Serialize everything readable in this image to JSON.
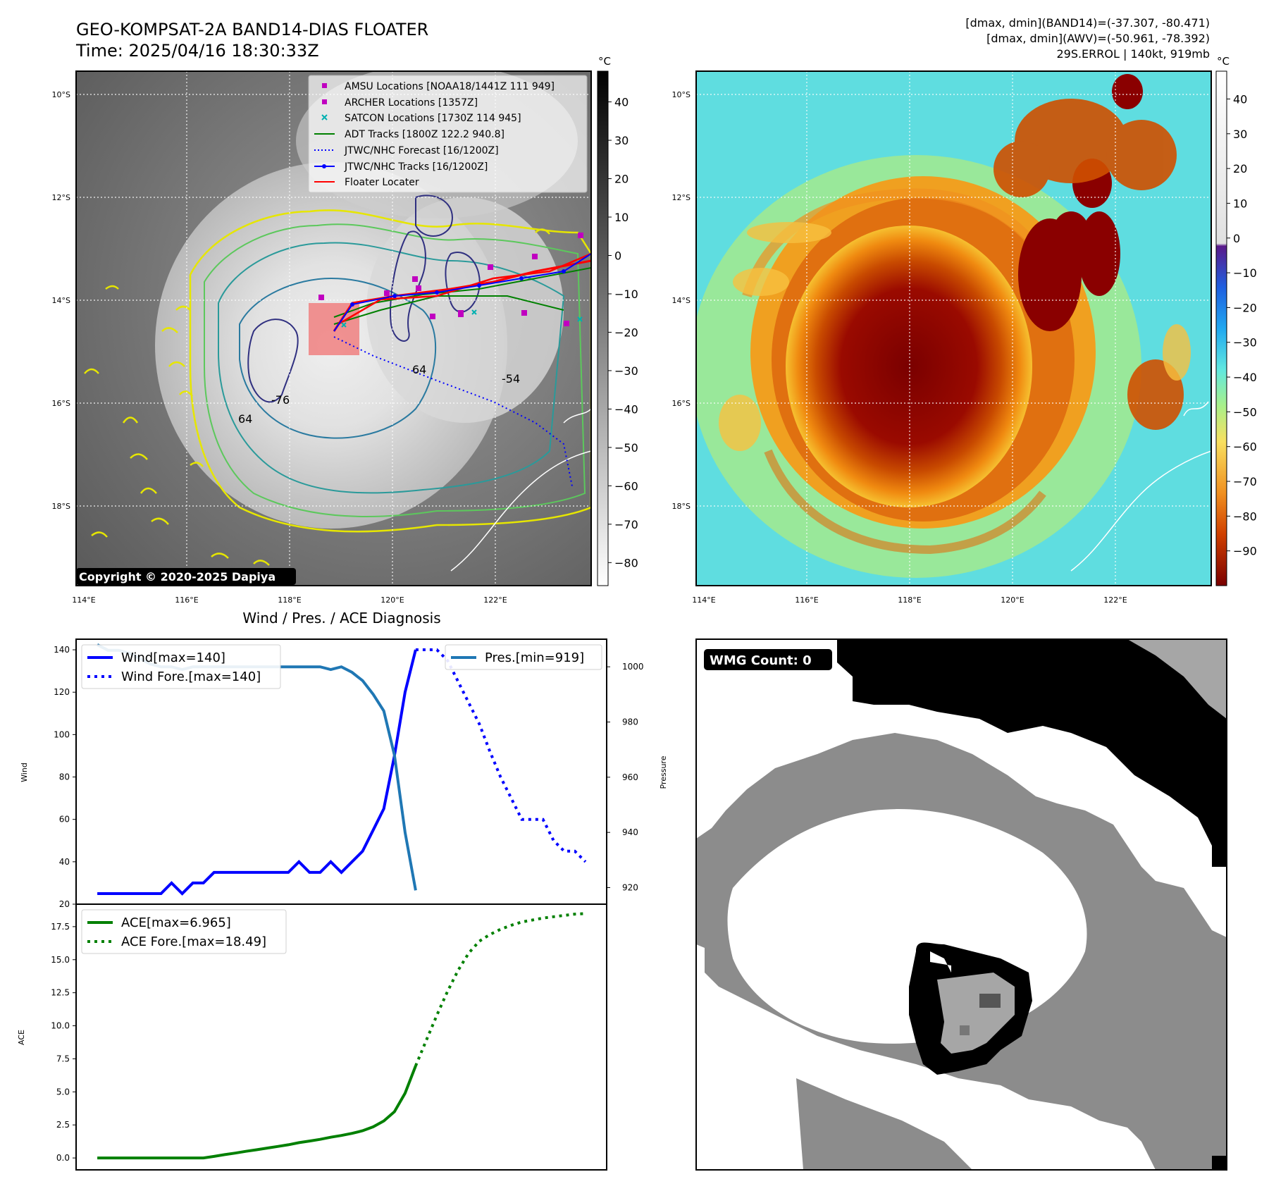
{
  "header": {
    "title_line1": "GEO-KOMPSAT-2A BAND14-DIAS FLOATER",
    "title_line2": "Time: 2025/04/16 18:30:33Z",
    "info_line1": "[dmax, dmin](BAND14)=(-37.307, -80.471)",
    "info_line2": "[dmax, dmin](AWV)=(-50.961, -78.392)",
    "info_line3": "29S.ERROL | 140kt, 919mb"
  },
  "map": {
    "lat_labels": [
      "10°S",
      "12°S",
      "14°S",
      "16°S",
      "18°S"
    ],
    "lon_labels": [
      "114°E",
      "116°E",
      "118°E",
      "120°E",
      "122°E"
    ],
    "copyright": "Copyright © 2020-2025 Dapiya",
    "contour_labels": [
      "-76",
      "64",
      "64",
      "-54"
    ],
    "legend": [
      {
        "label": "AMSU Locations [NOAA18/1441Z 111 949]",
        "marker": "square",
        "color": "#c000c0"
      },
      {
        "label": "ARCHER Locations [1357Z]",
        "marker": "square",
        "color": "#c000c0"
      },
      {
        "label": "SATCON Locations [1730Z 114 945]",
        "marker": "x",
        "color": "#00b0b0"
      },
      {
        "label": "ADT Tracks [1800Z 122.2 940.8]",
        "marker": "line",
        "color": "#008000"
      },
      {
        "label": "JTWC/NHC Forecast [16/1200Z]",
        "marker": "dotted",
        "color": "#0000ff"
      },
      {
        "label": "JTWC/NHC Tracks [16/1200Z]",
        "marker": "line-dot",
        "color": "#0000ff"
      },
      {
        "label": "Floater Locater",
        "marker": "line",
        "color": "#ff0000"
      }
    ]
  },
  "colorbar_gray": {
    "unit": "°C",
    "ticks": [
      "40",
      "30",
      "20",
      "10",
      "0",
      "−10",
      "−20",
      "−30",
      "−40",
      "−50",
      "−60",
      "−70",
      "−80"
    ]
  },
  "colorbar_color": {
    "unit": "°C",
    "ticks": [
      "40",
      "30",
      "20",
      "10",
      "0",
      "−10",
      "−20",
      "−30",
      "−40",
      "−50",
      "−60",
      "−70",
      "−80",
      "−90"
    ]
  },
  "wmg": {
    "label": "WMG Count: 0"
  },
  "chart_data": [
    {
      "type": "line",
      "title": "Wind / Pres. / ACE Diagnosis",
      "ylabel": "Wind",
      "ylim": [
        20,
        145
      ],
      "yticks": [
        20,
        40,
        60,
        80,
        100,
        120,
        140
      ],
      "y2label": "Pressure",
      "y2lim": [
        914,
        1010
      ],
      "y2ticks": [
        920,
        940,
        960,
        980,
        1000
      ],
      "xlim": [
        -2,
        48
      ],
      "series": [
        {
          "name": "Wind[max=140]",
          "axis": "left",
          "style": "solid",
          "color": "#0000ff",
          "x": [
            0,
            1,
            2,
            3,
            4,
            5,
            6,
            7,
            8,
            9,
            10,
            11,
            12,
            13,
            14,
            15,
            16,
            17,
            18,
            19,
            20,
            21,
            22,
            23,
            24,
            25,
            26,
            27,
            28,
            29,
            30
          ],
          "values": [
            25,
            25,
            25,
            25,
            25,
            25,
            25,
            30,
            25,
            30,
            30,
            35,
            35,
            35,
            35,
            35,
            35,
            35,
            35,
            40,
            35,
            35,
            40,
            35,
            40,
            45,
            55,
            65,
            90,
            120,
            140
          ]
        },
        {
          "name": "Wind Fore.[max=140]",
          "axis": "left",
          "style": "dotted",
          "color": "#0000ff",
          "x": [
            30,
            31,
            32,
            33,
            34,
            35,
            36,
            37,
            38,
            39,
            40,
            41,
            42,
            43,
            44,
            45,
            46
          ],
          "values": [
            140,
            140,
            140,
            135,
            125,
            115,
            105,
            92,
            80,
            70,
            60,
            60,
            60,
            50,
            45,
            45,
            40
          ]
        },
        {
          "name": "Pres.[min=919]",
          "axis": "right",
          "style": "solid",
          "color": "#1f77b4",
          "x": [
            0,
            1,
            2,
            3,
            4,
            5,
            6,
            7,
            8,
            9,
            10,
            11,
            12,
            13,
            14,
            15,
            16,
            17,
            18,
            19,
            20,
            21,
            22,
            23,
            24,
            25,
            26,
            27,
            28,
            29,
            30
          ],
          "values": [
            1008,
            1006,
            1006,
            1005,
            1003,
            1001,
            1000,
            1000,
            999,
            1000,
            1000,
            1000,
            1000,
            1000,
            1000,
            1000,
            1000,
            1000,
            1000,
            1000,
            1000,
            1000,
            999,
            1000,
            998,
            995,
            990,
            984,
            968,
            940,
            919
          ]
        }
      ]
    },
    {
      "type": "line",
      "title": "",
      "ylabel": "ACE",
      "ylim": [
        -0.9,
        19.2
      ],
      "yticks": [
        0.0,
        2.5,
        5.0,
        7.5,
        10.0,
        12.5,
        15.0,
        17.5
      ],
      "xlim": [
        -2,
        48
      ],
      "series": [
        {
          "name": "ACE[max=6.965]",
          "style": "solid",
          "color": "#008000",
          "x": [
            0,
            1,
            2,
            3,
            4,
            5,
            6,
            7,
            8,
            9,
            10,
            11,
            12,
            13,
            14,
            15,
            16,
            17,
            18,
            19,
            20,
            21,
            22,
            23,
            24,
            25,
            26,
            27,
            28,
            29,
            30
          ],
          "values": [
            0,
            0,
            0,
            0,
            0,
            0,
            0,
            0,
            0,
            0,
            0,
            0.12,
            0.25,
            0.37,
            0.5,
            0.62,
            0.75,
            0.87,
            1.0,
            1.16,
            1.28,
            1.41,
            1.57,
            1.7,
            1.86,
            2.06,
            2.36,
            2.8,
            3.5,
            4.9,
            6.965
          ]
        },
        {
          "name": "ACE Fore.[max=18.49]",
          "style": "dotted",
          "color": "#008000",
          "x": [
            30,
            31,
            32,
            33,
            34,
            35,
            36,
            37,
            38,
            39,
            40,
            41,
            42,
            43,
            44,
            45,
            46
          ],
          "values": [
            6.965,
            8.9,
            10.8,
            12.6,
            14.2,
            15.5,
            16.4,
            16.9,
            17.3,
            17.6,
            17.85,
            18.0,
            18.15,
            18.25,
            18.35,
            18.45,
            18.49
          ]
        }
      ]
    }
  ]
}
